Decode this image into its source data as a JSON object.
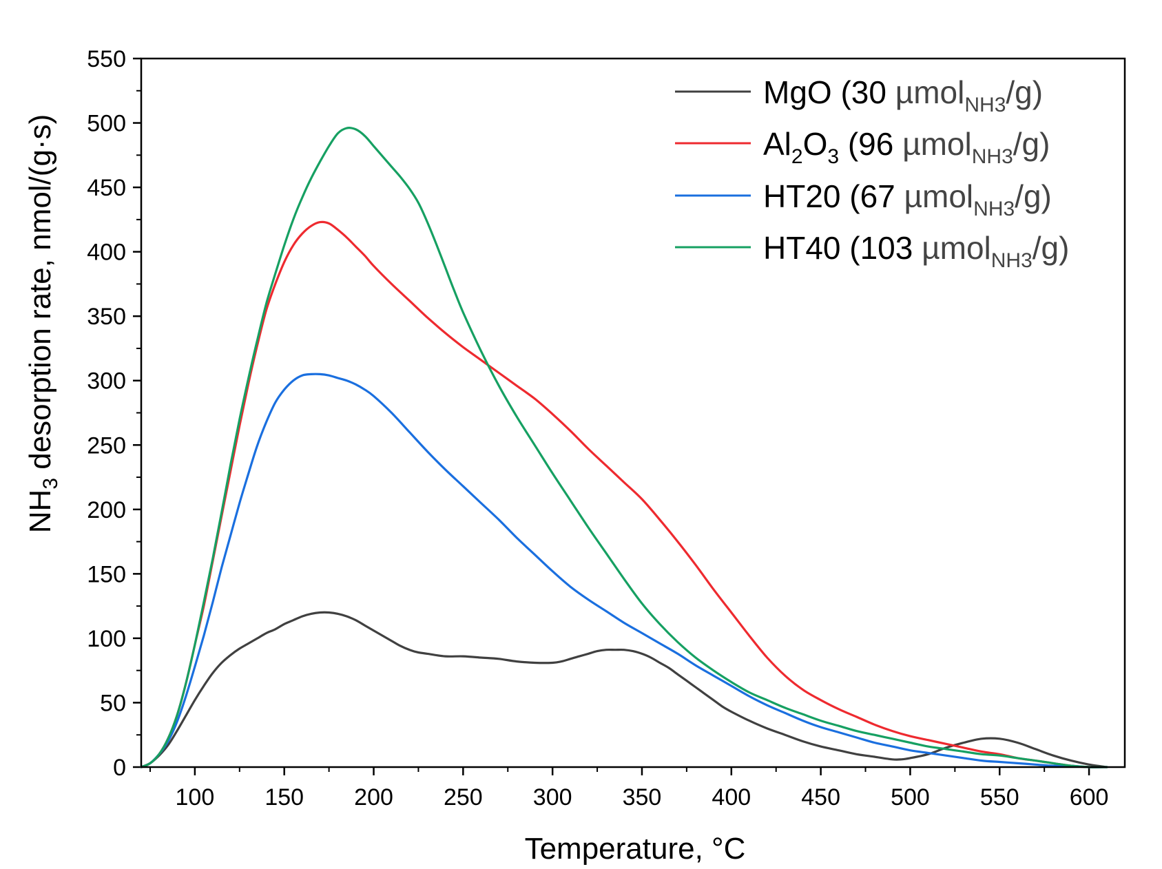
{
  "chart_data": {
    "type": "line",
    "title": "",
    "xlabel": "Temperature, °C",
    "ylabel": {
      "prefix": "NH",
      "sub": "3",
      "suffix": " desorption rate, nmol/(g·s)"
    },
    "xlim": [
      70,
      620
    ],
    "ylim": [
      0,
      550
    ],
    "xticks": [
      100,
      150,
      200,
      250,
      300,
      350,
      400,
      450,
      500,
      550,
      600
    ],
    "yticks": [
      0,
      50,
      100,
      150,
      200,
      250,
      300,
      350,
      400,
      450,
      500,
      550
    ],
    "legend_position": "top-right",
    "series": [
      {
        "name": "MgO (30 µmolNH3/g)",
        "label_main": "MgO (30 ",
        "label_unit": "µmol",
        "label_sub": "NH3",
        "label_end": "/g)",
        "color": "#404040",
        "points": [
          [
            70,
            0
          ],
          [
            75,
            3
          ],
          [
            80,
            9
          ],
          [
            85,
            17
          ],
          [
            90,
            28
          ],
          [
            95,
            40
          ],
          [
            100,
            52
          ],
          [
            105,
            63
          ],
          [
            110,
            73
          ],
          [
            115,
            81
          ],
          [
            120,
            87
          ],
          [
            125,
            92
          ],
          [
            130,
            96
          ],
          [
            135,
            100
          ],
          [
            140,
            104
          ],
          [
            145,
            107
          ],
          [
            150,
            111
          ],
          [
            155,
            114
          ],
          [
            160,
            117
          ],
          [
            165,
            119
          ],
          [
            170,
            120
          ],
          [
            175,
            120
          ],
          [
            180,
            119
          ],
          [
            185,
            117
          ],
          [
            190,
            114
          ],
          [
            195,
            110
          ],
          [
            200,
            106
          ],
          [
            205,
            102
          ],
          [
            210,
            98
          ],
          [
            215,
            94
          ],
          [
            220,
            91
          ],
          [
            225,
            89
          ],
          [
            230,
            88
          ],
          [
            240,
            86
          ],
          [
            250,
            86
          ],
          [
            260,
            85
          ],
          [
            270,
            84
          ],
          [
            280,
            82
          ],
          [
            290,
            81
          ],
          [
            300,
            81
          ],
          [
            305,
            82
          ],
          [
            310,
            84
          ],
          [
            315,
            86
          ],
          [
            320,
            88
          ],
          [
            325,
            90
          ],
          [
            330,
            91
          ],
          [
            335,
            91
          ],
          [
            340,
            91
          ],
          [
            345,
            90
          ],
          [
            350,
            88
          ],
          [
            355,
            85
          ],
          [
            360,
            81
          ],
          [
            365,
            77
          ],
          [
            370,
            72
          ],
          [
            375,
            67
          ],
          [
            380,
            62
          ],
          [
            385,
            57
          ],
          [
            390,
            52
          ],
          [
            395,
            47
          ],
          [
            400,
            43
          ],
          [
            410,
            36
          ],
          [
            420,
            30
          ],
          [
            430,
            25
          ],
          [
            440,
            20
          ],
          [
            450,
            16
          ],
          [
            460,
            13
          ],
          [
            470,
            10
          ],
          [
            480,
            8
          ],
          [
            490,
            6
          ],
          [
            495,
            6
          ],
          [
            500,
            7
          ],
          [
            510,
            10
          ],
          [
            520,
            15
          ],
          [
            530,
            19
          ],
          [
            540,
            22
          ],
          [
            550,
            22
          ],
          [
            560,
            19
          ],
          [
            570,
            14
          ],
          [
            580,
            9
          ],
          [
            590,
            5
          ],
          [
            600,
            2
          ],
          [
            610,
            0
          ]
        ]
      },
      {
        "name": "Al2O3 (96 µmolNH3/g)",
        "label_main": "Al",
        "label_sub1": "2",
        "label_mid": "O",
        "label_sub2": "3",
        "label_rest": " (96 ",
        "label_unit": "µmol",
        "label_sub": "NH3",
        "label_end": "/g)",
        "color": "#ee2a2f",
        "points": [
          [
            70,
            0
          ],
          [
            75,
            3
          ],
          [
            80,
            10
          ],
          [
            85,
            22
          ],
          [
            90,
            40
          ],
          [
            95,
            65
          ],
          [
            100,
            95
          ],
          [
            105,
            125
          ],
          [
            110,
            160
          ],
          [
            115,
            195
          ],
          [
            120,
            230
          ],
          [
            125,
            265
          ],
          [
            130,
            298
          ],
          [
            135,
            328
          ],
          [
            140,
            355
          ],
          [
            145,
            375
          ],
          [
            150,
            392
          ],
          [
            155,
            405
          ],
          [
            160,
            414
          ],
          [
            165,
            420
          ],
          [
            170,
            423
          ],
          [
            175,
            422
          ],
          [
            180,
            417
          ],
          [
            185,
            411
          ],
          [
            190,
            404
          ],
          [
            195,
            397
          ],
          [
            200,
            389
          ],
          [
            210,
            375
          ],
          [
            220,
            362
          ],
          [
            230,
            349
          ],
          [
            240,
            337
          ],
          [
            250,
            326
          ],
          [
            260,
            316
          ],
          [
            270,
            306
          ],
          [
            280,
            296
          ],
          [
            290,
            286
          ],
          [
            300,
            274
          ],
          [
            310,
            261
          ],
          [
            320,
            247
          ],
          [
            330,
            234
          ],
          [
            340,
            221
          ],
          [
            350,
            208
          ],
          [
            360,
            192
          ],
          [
            370,
            175
          ],
          [
            380,
            157
          ],
          [
            390,
            138
          ],
          [
            400,
            120
          ],
          [
            410,
            102
          ],
          [
            420,
            85
          ],
          [
            430,
            71
          ],
          [
            440,
            60
          ],
          [
            450,
            52
          ],
          [
            460,
            45
          ],
          [
            470,
            39
          ],
          [
            480,
            33
          ],
          [
            490,
            28
          ],
          [
            500,
            24
          ],
          [
            510,
            21
          ],
          [
            520,
            18
          ],
          [
            530,
            15
          ],
          [
            540,
            12
          ],
          [
            550,
            10
          ],
          [
            560,
            7
          ],
          [
            570,
            5
          ],
          [
            580,
            3
          ],
          [
            590,
            1
          ],
          [
            600,
            0
          ],
          [
            610,
            0
          ]
        ]
      },
      {
        "name": "HT20 (67 µmolNH3/g)",
        "label_main": "HT20 (67 ",
        "label_unit": "µmol",
        "label_sub": "NH3",
        "label_end": "/g)",
        "color": "#1a6fdf",
        "points": [
          [
            70,
            0
          ],
          [
            75,
            3
          ],
          [
            80,
            10
          ],
          [
            85,
            20
          ],
          [
            90,
            35
          ],
          [
            95,
            55
          ],
          [
            100,
            78
          ],
          [
            105,
            102
          ],
          [
            110,
            128
          ],
          [
            115,
            155
          ],
          [
            120,
            180
          ],
          [
            125,
            205
          ],
          [
            130,
            228
          ],
          [
            135,
            250
          ],
          [
            140,
            268
          ],
          [
            145,
            283
          ],
          [
            150,
            293
          ],
          [
            155,
            300
          ],
          [
            160,
            304
          ],
          [
            165,
            305
          ],
          [
            170,
            305
          ],
          [
            175,
            304
          ],
          [
            180,
            302
          ],
          [
            185,
            300
          ],
          [
            190,
            297
          ],
          [
            195,
            293
          ],
          [
            200,
            288
          ],
          [
            210,
            275
          ],
          [
            220,
            260
          ],
          [
            230,
            245
          ],
          [
            240,
            231
          ],
          [
            250,
            218
          ],
          [
            260,
            205
          ],
          [
            270,
            192
          ],
          [
            280,
            178
          ],
          [
            290,
            165
          ],
          [
            300,
            152
          ],
          [
            310,
            140
          ],
          [
            320,
            130
          ],
          [
            330,
            121
          ],
          [
            340,
            112
          ],
          [
            350,
            104
          ],
          [
            360,
            96
          ],
          [
            370,
            88
          ],
          [
            380,
            79
          ],
          [
            390,
            71
          ],
          [
            400,
            63
          ],
          [
            410,
            55
          ],
          [
            420,
            48
          ],
          [
            430,
            42
          ],
          [
            440,
            36
          ],
          [
            450,
            31
          ],
          [
            460,
            27
          ],
          [
            470,
            23
          ],
          [
            480,
            19
          ],
          [
            490,
            16
          ],
          [
            500,
            13
          ],
          [
            510,
            11
          ],
          [
            520,
            9
          ],
          [
            530,
            7
          ],
          [
            540,
            5
          ],
          [
            550,
            4
          ],
          [
            560,
            3
          ],
          [
            570,
            2
          ],
          [
            580,
            1
          ],
          [
            590,
            1
          ],
          [
            600,
            0
          ],
          [
            610,
            0
          ]
        ]
      },
      {
        "name": "HT40 (103 µmolNH3/g)",
        "label_main": "HT40 (103 ",
        "label_unit": "µmol",
        "label_sub": "NH3",
        "label_end": "/g)",
        "color": "#16a062",
        "points": [
          [
            70,
            0
          ],
          [
            75,
            3
          ],
          [
            80,
            10
          ],
          [
            85,
            22
          ],
          [
            90,
            40
          ],
          [
            95,
            65
          ],
          [
            100,
            95
          ],
          [
            105,
            128
          ],
          [
            110,
            162
          ],
          [
            115,
            198
          ],
          [
            120,
            235
          ],
          [
            125,
            270
          ],
          [
            130,
            302
          ],
          [
            135,
            332
          ],
          [
            140,
            360
          ],
          [
            145,
            383
          ],
          [
            150,
            405
          ],
          [
            155,
            425
          ],
          [
            160,
            442
          ],
          [
            165,
            457
          ],
          [
            170,
            470
          ],
          [
            175,
            482
          ],
          [
            180,
            492
          ],
          [
            185,
            496
          ],
          [
            190,
            495
          ],
          [
            195,
            490
          ],
          [
            200,
            482
          ],
          [
            205,
            474
          ],
          [
            210,
            466
          ],
          [
            215,
            458
          ],
          [
            220,
            449
          ],
          [
            225,
            438
          ],
          [
            230,
            423
          ],
          [
            235,
            406
          ],
          [
            240,
            388
          ],
          [
            245,
            370
          ],
          [
            250,
            353
          ],
          [
            260,
            323
          ],
          [
            270,
            296
          ],
          [
            280,
            272
          ],
          [
            290,
            250
          ],
          [
            300,
            228
          ],
          [
            310,
            207
          ],
          [
            320,
            186
          ],
          [
            330,
            166
          ],
          [
            340,
            146
          ],
          [
            350,
            127
          ],
          [
            360,
            111
          ],
          [
            370,
            97
          ],
          [
            380,
            85
          ],
          [
            390,
            75
          ],
          [
            400,
            66
          ],
          [
            410,
            58
          ],
          [
            420,
            52
          ],
          [
            430,
            46
          ],
          [
            440,
            41
          ],
          [
            450,
            36
          ],
          [
            460,
            32
          ],
          [
            470,
            28
          ],
          [
            480,
            25
          ],
          [
            490,
            22
          ],
          [
            500,
            19
          ],
          [
            510,
            16
          ],
          [
            520,
            14
          ],
          [
            530,
            12
          ],
          [
            540,
            10
          ],
          [
            550,
            9
          ],
          [
            560,
            7
          ],
          [
            570,
            5
          ],
          [
            580,
            3
          ],
          [
            590,
            1
          ],
          [
            600,
            0
          ],
          [
            610,
            0
          ]
        ]
      }
    ]
  }
}
